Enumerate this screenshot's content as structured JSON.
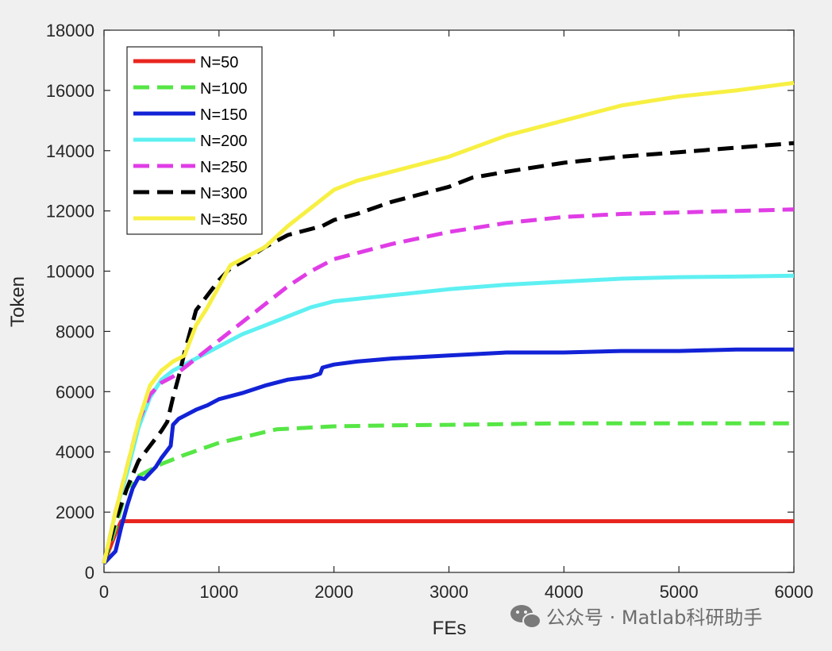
{
  "chart_data": {
    "type": "line",
    "xlabel": "FEs",
    "ylabel": "Token",
    "xlim": [
      0,
      6000
    ],
    "ylim": [
      0,
      18000
    ],
    "xticks": [
      0,
      1000,
      2000,
      3000,
      4000,
      5000,
      6000
    ],
    "yticks": [
      0,
      2000,
      4000,
      6000,
      8000,
      10000,
      12000,
      14000,
      16000,
      18000
    ],
    "grid": false,
    "legend_position": "top-left",
    "series": [
      {
        "name": "N=50",
        "color": "#e8251f",
        "style": "solid",
        "x": [
          0,
          100,
          150,
          200,
          600,
          1000,
          2000,
          3000,
          4000,
          5000,
          6000
        ],
        "y": [
          300,
          1300,
          1700,
          1700,
          1700,
          1700,
          1700,
          1700,
          1700,
          1700,
          1700
        ]
      },
      {
        "name": "N=100",
        "color": "#56e645",
        "style": "dashed",
        "x": [
          0,
          100,
          200,
          300,
          400,
          500,
          700,
          1000,
          1500,
          2000,
          2500,
          3000,
          4000,
          5000,
          6000
        ],
        "y": [
          300,
          1500,
          2800,
          3200,
          3400,
          3600,
          3900,
          4300,
          4750,
          4850,
          4880,
          4900,
          4950,
          4950,
          4950
        ]
      },
      {
        "name": "N=150",
        "color": "#1222d6",
        "style": "solid",
        "x": [
          0,
          50,
          100,
          150,
          200,
          250,
          300,
          350,
          400,
          450,
          500,
          580,
          600,
          650,
          700,
          800,
          900,
          1000,
          1200,
          1400,
          1600,
          1800,
          1880,
          1900,
          2000,
          2200,
          2500,
          3000,
          3500,
          4000,
          4500,
          5000,
          5500,
          6000
        ],
        "y": [
          300,
          500,
          700,
          1500,
          2200,
          2800,
          3150,
          3100,
          3300,
          3500,
          3800,
          4200,
          4900,
          5100,
          5200,
          5400,
          5550,
          5750,
          5950,
          6200,
          6400,
          6500,
          6600,
          6800,
          6900,
          7000,
          7100,
          7200,
          7300,
          7300,
          7350,
          7350,
          7400,
          7400
        ]
      },
      {
        "name": "N=200",
        "color": "#5ef0f2",
        "style": "solid",
        "x": [
          0,
          100,
          200,
          300,
          400,
          500,
          600,
          700,
          800,
          1000,
          1200,
          1400,
          1600,
          1800,
          2000,
          2500,
          3000,
          3500,
          4000,
          4500,
          5000,
          5500,
          6000
        ],
        "y": [
          300,
          2000,
          3300,
          4800,
          5800,
          6400,
          6700,
          6900,
          7100,
          7500,
          7900,
          8200,
          8500,
          8800,
          9000,
          9200,
          9400,
          9550,
          9650,
          9750,
          9800,
          9820,
          9850
        ]
      },
      {
        "name": "N=250",
        "color": "#e03de6",
        "style": "dashed",
        "x": [
          0,
          100,
          200,
          300,
          400,
          500,
          600,
          700,
          800,
          1000,
          1200,
          1400,
          1600,
          1800,
          2000,
          2500,
          3000,
          3500,
          4000,
          4500,
          5000,
          5500,
          6000
        ],
        "y": [
          300,
          2000,
          3500,
          5000,
          5900,
          6300,
          6500,
          6800,
          7100,
          7700,
          8300,
          8900,
          9500,
          10000,
          10400,
          10900,
          11300,
          11600,
          11800,
          11900,
          11950,
          12000,
          12050
        ]
      },
      {
        "name": "N=300",
        "color": "#000000",
        "style": "dashed",
        "x": [
          0,
          100,
          200,
          300,
          400,
          500,
          550,
          600,
          650,
          700,
          800,
          900,
          1000,
          1100,
          1200,
          1400,
          1600,
          1800,
          1900,
          2000,
          2200,
          2500,
          3000,
          3200,
          3500,
          4000,
          4500,
          5000,
          5500,
          6000
        ],
        "y": [
          300,
          1700,
          2800,
          3700,
          4200,
          4700,
          5000,
          5800,
          6500,
          7300,
          8700,
          9200,
          9700,
          10100,
          10300,
          10800,
          11200,
          11400,
          11500,
          11700,
          11900,
          12300,
          12800,
          13100,
          13300,
          13600,
          13800,
          13950,
          14100,
          14250
        ]
      },
      {
        "name": "N=350",
        "color": "#f7f043",
        "style": "solid",
        "x": [
          0,
          100,
          200,
          300,
          400,
          500,
          600,
          700,
          800,
          900,
          1000,
          1100,
          1200,
          1400,
          1600,
          1800,
          2000,
          2200,
          2500,
          3000,
          3500,
          4000,
          4500,
          5000,
          5500,
          6000
        ],
        "y": [
          300,
          2000,
          3500,
          5000,
          6200,
          6700,
          7000,
          7200,
          8200,
          8800,
          9500,
          10200,
          10400,
          10800,
          11500,
          12100,
          12700,
          13000,
          13300,
          13800,
          14500,
          15000,
          15500,
          15800,
          16000,
          16250
        ]
      }
    ]
  },
  "legend": {
    "entries": [
      {
        "label": "N=50"
      },
      {
        "label": "N=100"
      },
      {
        "label": "N=150"
      },
      {
        "label": "N=200"
      },
      {
        "label": "N=250"
      },
      {
        "label": "N=300"
      },
      {
        "label": "N=350"
      }
    ]
  },
  "watermark": {
    "text": "公众号 · Matlab科研助手",
    "icon": "wechat-icon"
  },
  "colors": {
    "background": "#f0f0f0",
    "plot_area": "#ffffff",
    "axis": "#262626"
  }
}
